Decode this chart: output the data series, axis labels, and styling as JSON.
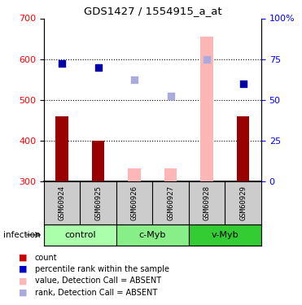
{
  "title": "GDS1427 / 1554915_a_at",
  "samples": [
    "GSM60924",
    "GSM60925",
    "GSM60926",
    "GSM60927",
    "GSM60928",
    "GSM60929"
  ],
  "groups": [
    {
      "name": "control",
      "indices": [
        0,
        1
      ]
    },
    {
      "name": "c-Myb",
      "indices": [
        2,
        3
      ]
    },
    {
      "name": "v-Myb",
      "indices": [
        4,
        5
      ]
    }
  ],
  "group_colors": [
    "#aaffaa",
    "#88ee88",
    "#33cc33"
  ],
  "bar_values": [
    460,
    400,
    332,
    332,
    655,
    460
  ],
  "bar_colors": [
    "#990000",
    "#990000",
    "#ffb6b6",
    "#ffb6b6",
    "#ffb6b6",
    "#990000"
  ],
  "dot_values": [
    590,
    580,
    550,
    510,
    600,
    540
  ],
  "dot_colors": [
    "#0000aa",
    "#0000aa",
    "#aaaadd",
    "#aaaadd",
    "#aaaadd",
    "#0000aa"
  ],
  "ylim_left": [
    300,
    700
  ],
  "yticks_left": [
    300,
    400,
    500,
    600,
    700
  ],
  "yticks_right": [
    0,
    25,
    50,
    75,
    100
  ],
  "ytick_labels_right": [
    "0",
    "25",
    "50",
    "75",
    "100%"
  ],
  "hlines": [
    400,
    500,
    600
  ],
  "sample_bg_color": "#cccccc",
  "infection_label": "infection",
  "legend_colors": [
    "#cc0000",
    "#0000cc",
    "#ffb6b6",
    "#aaaadd"
  ],
  "legend_labels": [
    "count",
    "percentile rank within the sample",
    "value, Detection Call = ABSENT",
    "rank, Detection Call = ABSENT"
  ]
}
